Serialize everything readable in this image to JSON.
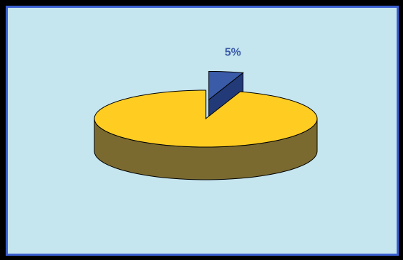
{
  "chart_data": {
    "type": "pie",
    "title": "",
    "slices": [
      {
        "label": "",
        "value": 95,
        "color": "#ffcc22",
        "side_color": "#7a6a30",
        "exploded": false
      },
      {
        "label": "5%",
        "value": 5,
        "color": "#3a5ba8",
        "side_color": "#233a78",
        "exploded": true
      }
    ],
    "data_labels": [
      "",
      "5%"
    ],
    "label_color": "#3a5ba8",
    "legend": "none",
    "style": "3d-exploded"
  },
  "colors": {
    "frame": "#000000",
    "plot_background": "#c5e5ef",
    "plot_border": "#3a5fd0"
  }
}
